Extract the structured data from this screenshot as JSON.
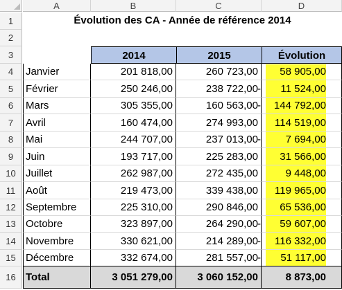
{
  "columns": [
    "A",
    "B",
    "C",
    "D"
  ],
  "rows": [
    "1",
    "2",
    "3",
    "4",
    "5",
    "6",
    "7",
    "8",
    "9",
    "10",
    "11",
    "12",
    "13",
    "14",
    "15",
    "16"
  ],
  "title": "Évolution des CA - Année de référence 2014",
  "table": {
    "headers": [
      "2014",
      "2015",
      "Évolution"
    ],
    "rows": [
      {
        "month": "Janvier",
        "y2014": "201 818,00",
        "y2015": "260 723,00",
        "evo": "58 905,00",
        "neg": false
      },
      {
        "month": "Février",
        "y2014": "250 246,00",
        "y2015": "238 722,00",
        "evo": "11 524,00",
        "neg": true
      },
      {
        "month": "Mars",
        "y2014": "305 355,00",
        "y2015": "160 563,00",
        "evo": "144 792,00",
        "neg": true
      },
      {
        "month": "Avril",
        "y2014": "160 474,00",
        "y2015": "274 993,00",
        "evo": "114 519,00",
        "neg": false
      },
      {
        "month": "Mai",
        "y2014": "244 707,00",
        "y2015": "237 013,00",
        "evo": "7 694,00",
        "neg": true
      },
      {
        "month": "Juin",
        "y2014": "193 717,00",
        "y2015": "225 283,00",
        "evo": "31 566,00",
        "neg": false
      },
      {
        "month": "Juillet",
        "y2014": "262 987,00",
        "y2015": "272 435,00",
        "evo": "9 448,00",
        "neg": false
      },
      {
        "month": "Août",
        "y2014": "219 473,00",
        "y2015": "339 438,00",
        "evo": "119 965,00",
        "neg": false
      },
      {
        "month": "Septembre",
        "y2014": "225 310,00",
        "y2015": "290 846,00",
        "evo": "65 536,00",
        "neg": false
      },
      {
        "month": "Octobre",
        "y2014": "323 897,00",
        "y2015": "264 290,00",
        "evo": "59 607,00",
        "neg": true
      },
      {
        "month": "Novembre",
        "y2014": "330 621,00",
        "y2015": "214 289,00",
        "evo": "116 332,00",
        "neg": true
      },
      {
        "month": "Décembre",
        "y2014": "332 674,00",
        "y2015": "281 557,00",
        "evo": "51 117,00",
        "neg": true
      }
    ],
    "total": {
      "label": "Total",
      "y2014": "3 051 279,00",
      "y2015": "3 060 152,00",
      "evo": "8 873,00"
    },
    "minus_sign": "-"
  },
  "colors": {
    "header_fill": "#b4c6e7",
    "highlight": "#ffff33",
    "total_fill": "#d9d9d9"
  }
}
